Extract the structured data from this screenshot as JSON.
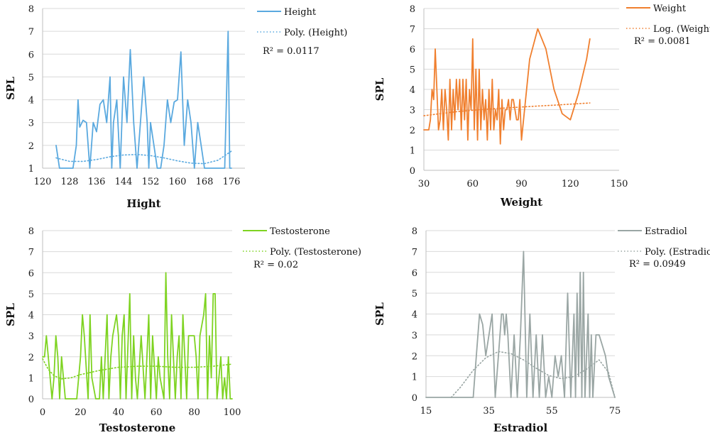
{
  "chart_data": [
    {
      "type": "line",
      "xlabel": "Hight",
      "ylabel": "SPL",
      "xlim": [
        120,
        180
      ],
      "ylim": [
        1,
        8
      ],
      "xticks": [
        120,
        128,
        136,
        144,
        152,
        160,
        168,
        176
      ],
      "yticks": [
        1,
        2,
        3,
        4,
        5,
        6,
        7,
        8
      ],
      "color": "#5aa9df",
      "grid": true,
      "legend_position": "top-right",
      "series": [
        {
          "name": "Height",
          "style": "solid",
          "x": [
            124,
            125,
            127,
            129,
            130,
            130.5,
            131,
            132,
            133,
            134,
            135,
            136,
            137,
            138,
            139,
            140,
            140.5,
            141,
            142,
            143,
            144,
            145,
            146,
            147,
            148,
            149,
            150,
            151,
            151.5,
            152,
            153,
            154,
            155,
            156,
            157,
            158,
            159,
            160,
            161,
            162,
            163,
            164,
            165,
            166,
            167,
            168,
            172,
            174,
            175,
            175.5,
            176
          ],
          "y": [
            2,
            1,
            1,
            1,
            2,
            4,
            2.8,
            3.1,
            3,
            1,
            3,
            2.6,
            3.8,
            4,
            3,
            5,
            1,
            3,
            4,
            1,
            5,
            3,
            6.2,
            3,
            1,
            3,
            5,
            3,
            1,
            3,
            2,
            1,
            1,
            2,
            4,
            3,
            3.9,
            4,
            6.1,
            2,
            4,
            3,
            1,
            3,
            2,
            1,
            1,
            1,
            7,
            1,
            1
          ]
        },
        {
          "name": "Poly. (Height)",
          "style": "dotted",
          "x": [
            124,
            128,
            132,
            136,
            140,
            144,
            148,
            152,
            156,
            160,
            164,
            168,
            172,
            176
          ],
          "y": [
            1.45,
            1.3,
            1.3,
            1.38,
            1.5,
            1.58,
            1.6,
            1.55,
            1.45,
            1.32,
            1.22,
            1.2,
            1.35,
            1.75
          ]
        }
      ],
      "annotation": "R² = 0.0117"
    },
    {
      "type": "line",
      "xlabel": "Weight",
      "ylabel": "SPL",
      "xlim": [
        30,
        150
      ],
      "ylim": [
        0,
        8
      ],
      "xticks": [
        30,
        60,
        90,
        120,
        150
      ],
      "yticks": [
        0,
        1,
        2,
        3,
        4,
        5,
        6,
        7,
        8
      ],
      "color": "#f07f2e",
      "grid": true,
      "legend_position": "top-right",
      "series": [
        {
          "name": "Weight",
          "style": "solid",
          "x": [
            30,
            33,
            34,
            35,
            36,
            37,
            38,
            39,
            40,
            41,
            42,
            43,
            44,
            45,
            46,
            47,
            48,
            49,
            50,
            51,
            52,
            53,
            54,
            55,
            56,
            57,
            58,
            59,
            60,
            61,
            62,
            63,
            64,
            65,
            66,
            67,
            68,
            69,
            70,
            71,
            72,
            73,
            74,
            75,
            76,
            77,
            78,
            79,
            80,
            81,
            82,
            83,
            84,
            85,
            86,
            87,
            88,
            89,
            90,
            95,
            100,
            105,
            110,
            115,
            120,
            125,
            130,
            132
          ],
          "y": [
            2,
            2,
            2.5,
            4,
            3.5,
            6,
            4,
            2,
            2.5,
            4,
            2,
            4,
            3,
            1.5,
            4.5,
            2,
            4,
            2.5,
            4.5,
            3,
            4.5,
            2,
            4.5,
            2.5,
            4.5,
            1.5,
            4,
            3,
            6.5,
            2,
            5,
            1.5,
            5,
            2,
            4,
            2.5,
            3.5,
            1.5,
            4,
            2,
            4.5,
            2,
            3,
            2.5,
            4,
            1.3,
            3.5,
            2,
            3,
            3,
            3.5,
            2.5,
            3.5,
            3.5,
            3,
            2.5,
            2.5,
            3.5,
            1.5,
            5.5,
            7,
            6,
            4,
            2.8,
            2.5,
            3.8,
            5.5,
            6.5
          ]
        },
        {
          "name": "Log. (Weight)",
          "style": "dotted",
          "x": [
            30,
            40,
            50,
            60,
            70,
            80,
            90,
            100,
            110,
            120,
            132
          ],
          "y": [
            2.7,
            2.8,
            2.9,
            2.97,
            3.03,
            3.08,
            3.13,
            3.18,
            3.22,
            3.27,
            3.33
          ]
        }
      ],
      "annotation": "R² = 0.0081"
    },
    {
      "type": "line",
      "xlabel": "Testosterone",
      "ylabel": "SPL",
      "xlim": [
        0,
        100
      ],
      "ylim": [
        0,
        8
      ],
      "xticks": [
        0,
        20,
        40,
        60,
        80,
        100
      ],
      "yticks": [
        0,
        1,
        2,
        3,
        4,
        5,
        6,
        7,
        8
      ],
      "color": "#7ed321",
      "grid": true,
      "legend_position": "top-right",
      "series": [
        {
          "name": "Testosterone",
          "style": "solid",
          "x": [
            0,
            1,
            2,
            3,
            5,
            6,
            7,
            8,
            9,
            10,
            12,
            18,
            20,
            21,
            22,
            24,
            25,
            26,
            28,
            30,
            31,
            32,
            34,
            35,
            36,
            37,
            39,
            40,
            41,
            42,
            43,
            44,
            46,
            47,
            48,
            49,
            50,
            52,
            54,
            55,
            56,
            57,
            58,
            60,
            61,
            62,
            64,
            65,
            66,
            67,
            68,
            70,
            71,
            72,
            73,
            74,
            76,
            77,
            78,
            80,
            81,
            82,
            83,
            85,
            86,
            87,
            88,
            89,
            90,
            91,
            92,
            94,
            95,
            96,
            97,
            98,
            99,
            100
          ],
          "y": [
            2,
            2,
            3,
            2,
            0,
            1,
            3,
            2,
            0,
            2,
            0,
            0,
            2,
            4,
            3,
            0,
            4,
            1,
            0,
            0,
            2,
            0,
            4,
            0,
            2,
            3,
            4,
            3,
            0,
            3,
            4,
            0,
            5,
            0,
            3,
            1,
            0,
            3,
            0,
            2,
            4,
            0,
            3,
            0,
            2,
            1,
            0,
            6,
            2,
            0,
            4,
            0,
            2,
            3,
            0,
            4,
            0,
            3,
            3,
            3,
            2,
            0,
            3,
            4,
            5,
            0,
            3,
            1,
            5,
            5,
            0,
            2,
            0,
            1,
            0,
            2,
            0,
            0
          ]
        },
        {
          "name": "Poly. (Testosterone)",
          "style": "dotted",
          "x": [
            0,
            3,
            6,
            10,
            15,
            20,
            30,
            40,
            50,
            60,
            70,
            80,
            90,
            100
          ],
          "y": [
            1.9,
            1.4,
            1.1,
            0.95,
            1.0,
            1.15,
            1.35,
            1.5,
            1.55,
            1.55,
            1.5,
            1.5,
            1.55,
            1.65
          ]
        }
      ],
      "annotation": "R² = 0.02"
    },
    {
      "type": "line",
      "xlabel": "Estradiol",
      "ylabel": "SPL",
      "xlim": [
        15,
        75
      ],
      "ylim": [
        0,
        8
      ],
      "xticks": [
        15,
        35,
        55,
        75
      ],
      "yticks": [
        0,
        1,
        2,
        3,
        4,
        5,
        6,
        7,
        8
      ],
      "color": "#9aa6a4",
      "grid": true,
      "legend_position": "top-right",
      "series": [
        {
          "name": "Estradiol",
          "style": "solid",
          "x": [
            15,
            24,
            30,
            31,
            32,
            33,
            34,
            35,
            36,
            37,
            38,
            39,
            39.5,
            40,
            40.5,
            41,
            42,
            43,
            44,
            45,
            46,
            47,
            48,
            49,
            50,
            51,
            52,
            53,
            54,
            55,
            56,
            57,
            58,
            59,
            60,
            61,
            62,
            62.5,
            63,
            63.5,
            64,
            64.5,
            65,
            65.5,
            66,
            66.5,
            67,
            67.5,
            68,
            69,
            70,
            71,
            72,
            73,
            75
          ],
          "y": [
            0,
            0,
            0,
            2,
            4,
            3.5,
            2,
            3,
            4,
            0,
            2,
            4,
            4,
            3,
            4,
            3,
            0,
            3,
            0,
            3,
            7,
            0,
            4,
            0,
            3,
            0,
            3,
            0,
            1,
            0,
            2,
            1,
            2,
            0,
            5,
            0,
            4,
            0,
            5,
            1,
            6,
            0,
            6,
            0,
            2,
            4,
            0,
            3,
            0,
            3,
            3,
            2.5,
            2,
            1,
            0
          ]
        },
        {
          "name": "Poly. (Estradiol)",
          "style": "dotted",
          "x": [
            23,
            26,
            30,
            34,
            38,
            42,
            46,
            50,
            54,
            58,
            62,
            66,
            70,
            73,
            75
          ],
          "y": [
            0,
            0.5,
            1.3,
            1.9,
            2.2,
            2.1,
            1.8,
            1.4,
            1.05,
            0.9,
            1.0,
            1.35,
            1.8,
            1.2,
            0
          ]
        }
      ],
      "annotation": "R² = 0.0949"
    }
  ]
}
